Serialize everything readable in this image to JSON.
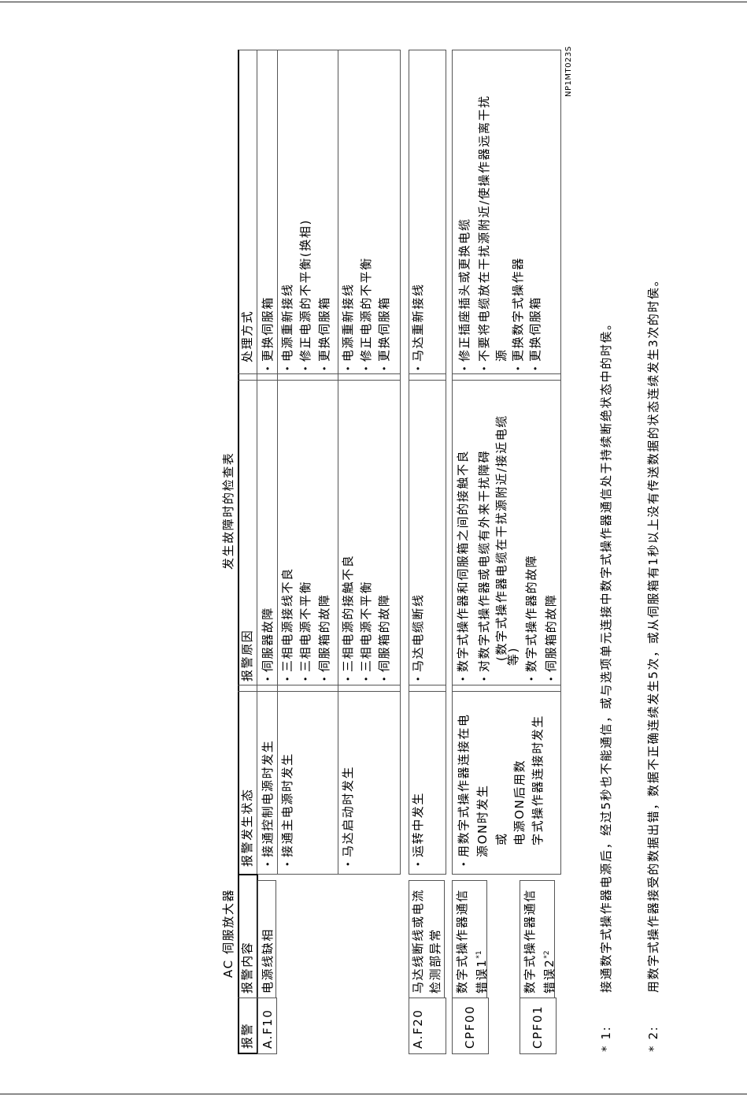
{
  "titles": {
    "left": "AC 伺服放大器",
    "center": "发生故障时的检查表"
  },
  "figure_code": "NP1MT023S",
  "headers": [
    "报警",
    "报警内容",
    "报警发生状态",
    "报警原因",
    "处理方式"
  ],
  "groups": {
    "af10": {
      "code": "A.F10",
      "content": "电源线缺相",
      "rows": [
        {
          "state": [
            "接通控制电源时发生"
          ],
          "cause": [
            "伺服器故障"
          ],
          "action": [
            "更换伺服箱"
          ]
        },
        {
          "state": [
            "接通主电源时发生"
          ],
          "cause": [
            "三相电源接线不良",
            "三相电源不平衡",
            "伺服箱的故障"
          ],
          "action": [
            "电源重新接线",
            "修正电源的不平衡(换相)",
            "更换伺服箱"
          ]
        },
        {
          "state": [
            "马达启动时发生"
          ],
          "cause": [
            "三相电源的接触不良",
            "三相电源不平衡",
            "伺服箱的故障"
          ],
          "action": [
            "电源重新接线",
            "修正电源的不平衡",
            "更换伺服箱"
          ]
        }
      ]
    },
    "af20": {
      "code": "A.F20",
      "content": [
        "马达线断线或电流",
        "检测部异常"
      ],
      "state": "运转中发生",
      "cause": "马达电缆断线",
      "action": "马达重新接线"
    },
    "cpf": {
      "cpf00": {
        "code": "CPF00",
        "content": [
          "数字式操作器通信",
          "错误1"
        ],
        "note": "*1"
      },
      "cpf01": {
        "code": "CPF01",
        "content": [
          "数字式操作器通信",
          "错误2"
        ],
        "note": "*2"
      },
      "state": [
        "用数字式操作器连接在电",
        "源ON时发生",
        "或",
        "电源ON后用数",
        "字式操作器连接时发生"
      ],
      "cause": [
        "数字式操作器和伺服箱之间的接触不良",
        "对数字式操作器或电缆有外来干扰障碍",
        "(数字式操作器电缆在干扰源附近/接近电缆",
        "等)",
        "数字式操作器的故障",
        "伺服箱的故障"
      ],
      "action": [
        "修正插座插头或更换电缆",
        "不要将电缆放在干扰源附近/使操作器远离干扰",
        "源",
        "更换数字式操作器",
        "更换伺服箱"
      ]
    }
  },
  "footnotes": [
    {
      "mark": "* 1:",
      "text": "接通数字式操作器电源后，经过5秒也不能通信，或与选项单元连接中数字式操作器通信处于持续断绝状态中的时侯。"
    },
    {
      "mark": "* 2:",
      "text": "用数字式操作器接受的数据出错，数据不正确连续发生5次，或从伺服箱有1秒以上没有传送数据的状态连续发生3次的时侯。"
    }
  ]
}
